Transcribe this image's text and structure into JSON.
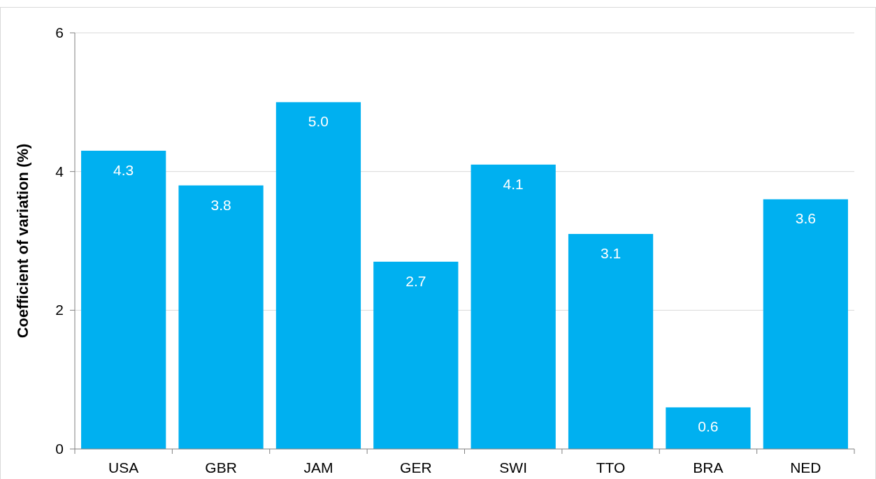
{
  "chart_data": {
    "type": "bar",
    "ylabel": "Coefficient of variation (%)",
    "categories": [
      "USA",
      "GBR",
      "JAM",
      "GER",
      "SWI",
      "TTO",
      "BRA",
      "NED"
    ],
    "values": [
      4.3,
      3.8,
      5.0,
      2.7,
      4.1,
      3.1,
      0.6,
      3.6
    ],
    "color": "#00b0f0",
    "ylim": [
      0,
      6
    ],
    "yticks": [
      0,
      2,
      4,
      6
    ],
    "value_labels": [
      "4.3",
      "3.8",
      "5.0",
      "2.7",
      "4.1",
      "3.1",
      "0.6",
      "3.6"
    ],
    "grid": "y"
  }
}
